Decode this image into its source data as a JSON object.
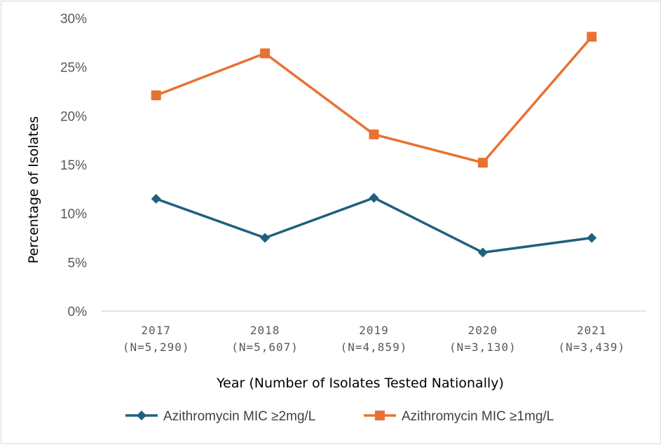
{
  "chart_data": {
    "type": "line",
    "categories": [
      "2017",
      "2018",
      "2019",
      "2020",
      "2021"
    ],
    "category_sublabels": [
      "(N=5,290)",
      "(N=5,607)",
      "(N=4,859)",
      "(N=3,130)",
      "(N=3,439)"
    ],
    "xlabel": "Year (Number of Isolates Tested Nationally)",
    "ylabel": "Percentage of Isolates",
    "ylim": [
      0,
      30
    ],
    "y_ticks": [
      0,
      5,
      10,
      15,
      20,
      25,
      30
    ],
    "y_tick_labels": [
      "0%",
      "5%",
      "10%",
      "15%",
      "20%",
      "25%",
      "30%"
    ],
    "grid": false,
    "legend_position": "bottom",
    "series": [
      {
        "name": "Azithromycin MIC ≥2mg/L",
        "values": [
          11.5,
          7.5,
          11.6,
          6.0,
          7.5
        ],
        "color": "#1f5f7f",
        "marker": "diamond"
      },
      {
        "name": "Azithromycin MIC ≥1mg/L",
        "values": [
          22.1,
          26.4,
          18.1,
          15.2,
          28.1
        ],
        "color": "#e97132",
        "marker": "square"
      }
    ]
  }
}
